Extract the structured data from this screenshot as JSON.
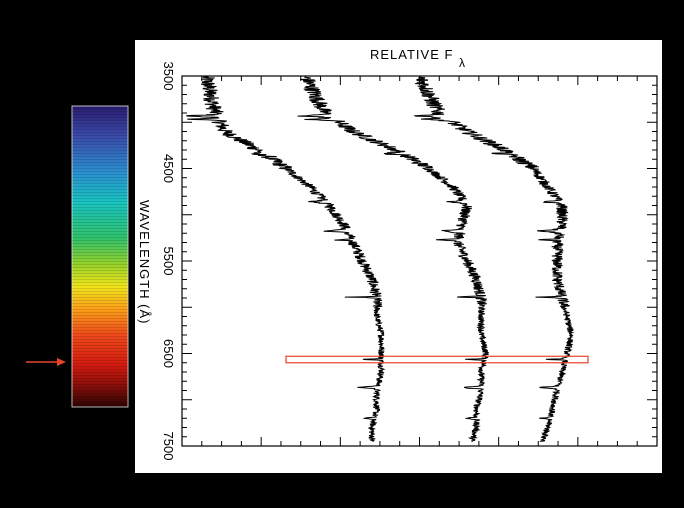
{
  "chart_data": {
    "type": "line",
    "title_main": "RELATIVE F",
    "title_sub": "λ",
    "ylabel": "WAVELENGTH (Å)",
    "y_orientation": "wavelength runs downward, rotated plot",
    "ylim": [
      3500,
      7500
    ],
    "y_ticks": [
      "3500",
      "4500",
      "5500",
      "6500",
      "7500"
    ],
    "grid": false,
    "highlight_band": {
      "wavelength_min": 6530,
      "wavelength_max": 6600,
      "color": "#e8442a"
    },
    "colorbar": {
      "marker_wavelength": 6563,
      "marker_color": "#e8442a"
    },
    "series": [
      {
        "wavelength": [
          3500,
          3700,
          3900,
          4100,
          4300,
          4500,
          4700,
          4900,
          5100,
          5300,
          5500,
          5700,
          5900,
          6100,
          6300,
          6500,
          6700,
          6900,
          7100,
          7300,
          7450
        ],
        "flux": [
          0.05,
          0.06,
          0.07,
          0.09,
          0.16,
          0.22,
          0.27,
          0.31,
          0.34,
          0.36,
          0.38,
          0.4,
          0.41,
          0.41,
          0.42,
          0.42,
          0.42,
          0.41,
          0.41,
          0.4,
          0.4
        ]
      },
      {
        "wavelength": [
          3500,
          3700,
          3900,
          4100,
          4300,
          4500,
          4700,
          4900,
          5100,
          5300,
          5500,
          5700,
          5900,
          6100,
          6300,
          6500,
          6700,
          6900,
          7100,
          7300,
          7450
        ],
        "flux": [
          0.26,
          0.28,
          0.3,
          0.36,
          0.45,
          0.52,
          0.57,
          0.6,
          0.59,
          0.58,
          0.6,
          0.62,
          0.63,
          0.63,
          0.63,
          0.64,
          0.63,
          0.63,
          0.62,
          0.62,
          0.61
        ]
      },
      {
        "wavelength": [
          3500,
          3700,
          3900,
          4100,
          4300,
          4500,
          4700,
          4900,
          5100,
          5300,
          5500,
          5700,
          5900,
          6100,
          6300,
          6500,
          6700,
          6900,
          7100,
          7300,
          7450
        ],
        "flux": [
          0.5,
          0.52,
          0.54,
          0.6,
          0.68,
          0.74,
          0.77,
          0.8,
          0.8,
          0.79,
          0.79,
          0.79,
          0.8,
          0.81,
          0.82,
          0.81,
          0.8,
          0.79,
          0.78,
          0.77,
          0.76
        ]
      }
    ]
  }
}
